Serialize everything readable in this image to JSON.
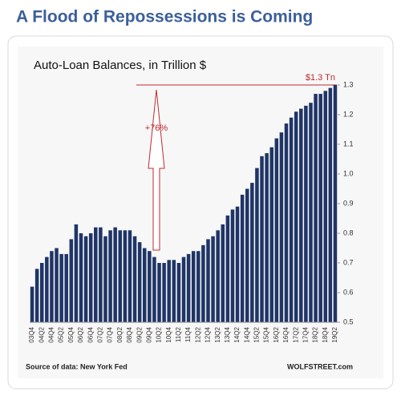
{
  "page_title": "A Flood of Repossessions is Coming",
  "chart_data": {
    "type": "bar",
    "title": "Auto-Loan Balances, in Trillion $",
    "categories": [
      "03Q4",
      null,
      "04Q2",
      null,
      "04Q4",
      null,
      "05Q2",
      null,
      "05Q4",
      null,
      "06Q2",
      null,
      "06Q4",
      null,
      "07Q2",
      null,
      "07Q4",
      null,
      "08Q2",
      null,
      "08Q4",
      null,
      "09Q2",
      null,
      "09Q4",
      null,
      "10Q2",
      null,
      "10Q4",
      null,
      "11Q2",
      null,
      "11Q4",
      null,
      "12Q2",
      null,
      "12Q4",
      null,
      "13Q2",
      null,
      "13Q4",
      null,
      "14Q2",
      null,
      "14Q4",
      null,
      "15Q2",
      null,
      "15Q4",
      null,
      "16Q2",
      null,
      "16Q4",
      null,
      "17Q2",
      null,
      "17Q4",
      null,
      "18Q2",
      null,
      "18Q4",
      null,
      "19Q2"
    ],
    "values": [
      0.62,
      0.68,
      0.7,
      0.72,
      0.74,
      0.75,
      0.73,
      0.73,
      0.78,
      0.83,
      0.8,
      0.79,
      0.8,
      0.82,
      0.82,
      0.79,
      0.81,
      0.82,
      0.81,
      0.81,
      0.81,
      0.79,
      0.77,
      0.75,
      0.74,
      0.72,
      0.7,
      0.7,
      0.71,
      0.71,
      0.7,
      0.72,
      0.73,
      0.74,
      0.74,
      0.76,
      0.78,
      0.79,
      0.81,
      0.83,
      0.86,
      0.88,
      0.89,
      0.93,
      0.95,
      0.97,
      1.02,
      1.06,
      1.07,
      1.09,
      1.12,
      1.14,
      1.17,
      1.19,
      1.21,
      1.22,
      1.23,
      1.24,
      1.27,
      1.27,
      1.28,
      1.29,
      1.3
    ],
    "color": "#1f3566",
    "ylim": [
      0.5,
      1.3
    ],
    "yticks": [
      0.5,
      0.6,
      0.7,
      0.8,
      0.9,
      {
        "value": 1,
        "label": "1.0"
      },
      1.1,
      1.2,
      1.3
    ],
    "grid": false,
    "annotations": {
      "peak": "$1.3 Tn",
      "change": "+76%",
      "source": "Source of data: New York Fed",
      "credit": "WOLFSTREET.com"
    }
  }
}
